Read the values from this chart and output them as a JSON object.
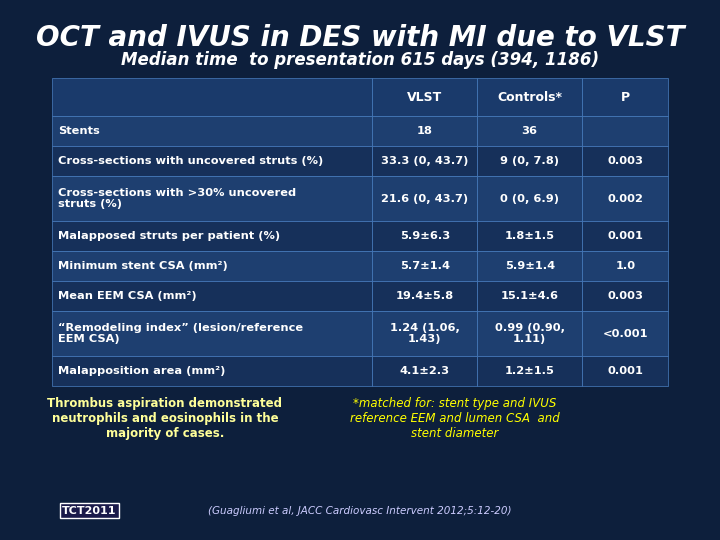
{
  "title": "OCT and IVUS in DES with MI due to VLST",
  "subtitle": "Median time  to presentation 615 days (394, 1186)",
  "bg_color": "#0d1f3c",
  "table_header": [
    "",
    "VLST",
    "Controls*",
    "P"
  ],
  "table_rows": [
    [
      "Stents",
      "18",
      "36",
      ""
    ],
    [
      "Cross-sections with uncovered struts (%)",
      "33.3 (0, 43.7)",
      "9 (0, 7.8)",
      "0.003"
    ],
    [
      "Cross-sections with >30% uncovered\nstruts (%)",
      "21.6 (0, 43.7)",
      "0 (0, 6.9)",
      "0.002"
    ],
    [
      "Malapposed struts per patient (%)",
      "5.9±6.3",
      "1.8±1.5",
      "0.001"
    ],
    [
      "Minimum stent CSA (mm²)",
      "5.7±1.4",
      "5.9±1.4",
      "1.0"
    ],
    [
      "Mean EEM CSA (mm²)",
      "19.4±5.8",
      "15.1±4.6",
      "0.003"
    ],
    [
      "“Remodeling index” (lesion/reference\nEEM CSA)",
      "1.24 (1.06,\n1.43)",
      "0.99 (0.90,\n1.11)",
      "<0.001"
    ],
    [
      "Malapposition area (mm²)",
      "4.1±2.3",
      "1.2±1.5",
      "0.001"
    ]
  ],
  "footer_left": "Thrombus aspiration demonstrated\nneutrophils and eosinophils in the\nmajority of cases.",
  "footer_right": "*matched for: stent type and IVUS\nreference EEM and lumen CSA  and\nstent diameter",
  "citation": "(Guagliumi et al, JACC Cardiovasc Intervent 2012;5:12-20)",
  "tct_text": "TCT2011",
  "header_bg": "#1a3a6b",
  "row_even_bg": "#1e3f70",
  "row_odd_bg": "#16305a",
  "text_color": "#ffffff",
  "title_color": "#ffffff",
  "border_color": "#4a7fc1"
}
